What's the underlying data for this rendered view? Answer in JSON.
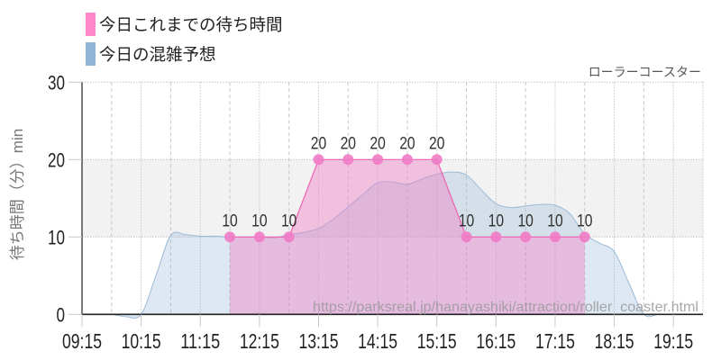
{
  "legend": {
    "items": [
      {
        "label": "今日これまでの待ち時間",
        "color": "#ff88cc"
      },
      {
        "label": "今日の混雑予想",
        "color": "#90b4d4"
      }
    ]
  },
  "attraction_name": "ローラーコースター",
  "watermark": "https://parksreal.jp/hanayashiki/attraction/roller_coaster.html",
  "chart_data": {
    "type": "area",
    "title": "",
    "xlabel": "",
    "ylabel": "待ち時間（分）min",
    "ylim": [
      0,
      30
    ],
    "yticks": [
      0,
      10,
      20,
      30
    ],
    "ytick_labels": [
      "0",
      "10",
      "20",
      "30"
    ],
    "x_range": [
      "09:15",
      "19:45"
    ],
    "xtick_labels": [
      "09:15",
      "10:15",
      "11:15",
      "12:15",
      "13:15",
      "14:15",
      "15:15",
      "16:15",
      "17:15",
      "18:15",
      "19:15"
    ],
    "grid": true,
    "band": [
      10,
      20
    ],
    "legend_position": "top-left",
    "series": [
      {
        "name": "今日これまでの待ち時間",
        "color": "#f07bc6",
        "style": "area-with-markers-and-data-labels",
        "x": [
          "11:45",
          "12:15",
          "12:45",
          "13:15",
          "13:45",
          "14:15",
          "14:45",
          "15:15",
          "15:45",
          "16:15",
          "16:45",
          "17:15",
          "17:45"
        ],
        "values": [
          10,
          10,
          10,
          20,
          20,
          20,
          20,
          20,
          10,
          10,
          10,
          10,
          10
        ]
      },
      {
        "name": "今日の混雑予想",
        "color": "#90b4d4",
        "style": "smooth-area",
        "x": [
          "09:15",
          "09:30",
          "09:45",
          "10:00",
          "10:15",
          "10:30",
          "10:45",
          "11:00",
          "11:15",
          "11:30",
          "11:45",
          "12:00",
          "12:15",
          "12:30",
          "12:45",
          "13:00",
          "13:15",
          "13:30",
          "13:45",
          "14:00",
          "14:15",
          "14:30",
          "14:45",
          "15:00",
          "15:15",
          "15:30",
          "15:45",
          "16:00",
          "16:15",
          "16:30",
          "16:45",
          "17:00",
          "17:15",
          "17:30",
          "17:45",
          "18:00",
          "18:15",
          "18:30",
          "18:45",
          "19:00",
          "19:15",
          "19:30",
          "19:45"
        ],
        "values": [
          0,
          0,
          0,
          -0.3,
          0,
          5.0,
          10.2,
          10.3,
          10.1,
          10.1,
          10.0,
          10.0,
          10.0,
          9.9,
          10.3,
          10.6,
          11.1,
          12.3,
          13.9,
          15.5,
          17.0,
          17.1,
          16.8,
          17.5,
          18.1,
          18.4,
          18.0,
          16.1,
          14.3,
          13.8,
          14.0,
          14.2,
          14.1,
          13.0,
          10.4,
          9.2,
          8.1,
          4.0,
          0,
          0,
          0,
          0,
          0
        ]
      }
    ]
  }
}
